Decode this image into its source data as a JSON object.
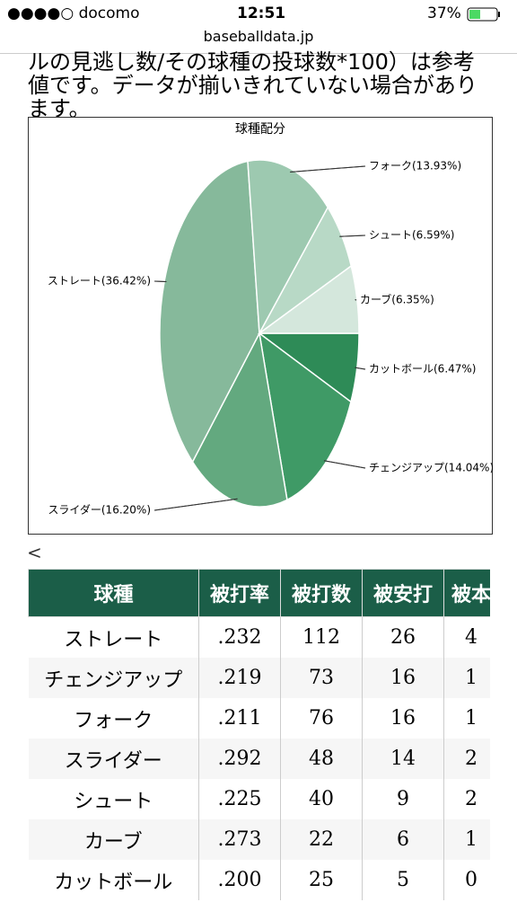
{
  "status_bar": {
    "carrier": "●●●●○ docomo",
    "time": "12:51",
    "battery": "37%"
  },
  "url": "baseballdata.jp",
  "note_lines": [
    "ルの見逃し数/その球種の投球数*100）は参考",
    "値です。データが揃いきれていない場合があり",
    "ます。"
  ],
  "chart_data": {
    "type": "pie",
    "title": "球種配分",
    "values": [
      6.47,
      14.04,
      16.2,
      36.42,
      13.93,
      6.59,
      6.35
    ],
    "value_labels": [
      "カットボール(6.47%)",
      "チェンジアップ(14.04%)",
      "スライダー(16.20%)",
      "ストレート(36.42%)",
      "フォーク(13.93%)",
      "シュート(6.59%)",
      "カーブ(6.35%)"
    ],
    "colors": [
      "#2e8b57",
      "#3f9a66",
      "#63a97f",
      "#86b99b",
      "#9dc9b0",
      "#b8d9c6",
      "#d4e7dc"
    ]
  },
  "back": "<",
  "table": {
    "header": [
      "球種",
      "被打率",
      "被打数",
      "被安打",
      "被本"
    ],
    "rows": [
      [
        "ストレート",
        ".232",
        "112",
        "26",
        "4"
      ],
      [
        "チェンジアップ",
        ".219",
        "73",
        "16",
        "1"
      ],
      [
        "フォーク",
        ".211",
        "76",
        "16",
        "1"
      ],
      [
        "スライダー",
        ".292",
        "48",
        "14",
        "2"
      ],
      [
        "シュート",
        ".225",
        "40",
        "9",
        "2"
      ],
      [
        "カーブ",
        ".273",
        "22",
        "6",
        "1"
      ],
      [
        "カットボール",
        ".200",
        "25",
        "5",
        "0"
      ]
    ]
  }
}
